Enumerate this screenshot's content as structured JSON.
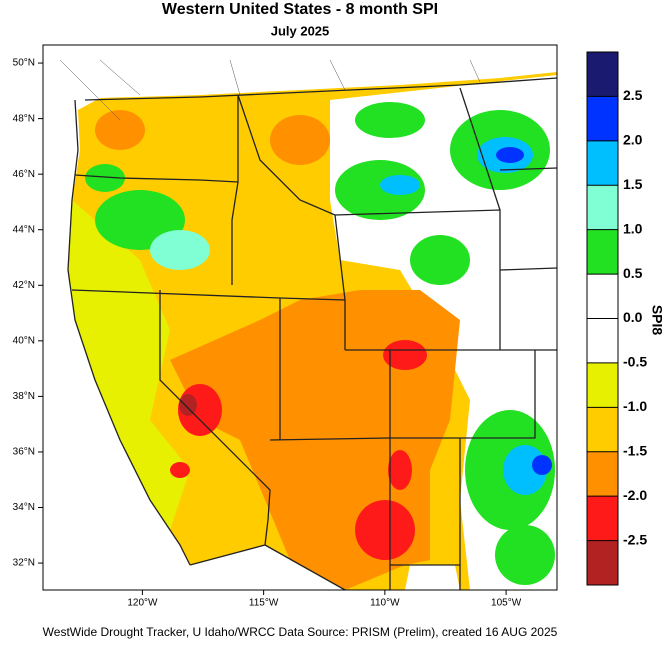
{
  "map": {
    "title": "Western United States - 8 month SPI",
    "subtitle": "July 2025",
    "xlim": [
      -124.1,
      -102.9
    ],
    "ylim": [
      31.03,
      50.65
    ],
    "lat_ticks": [
      {
        "value": 50,
        "label": "50°N"
      },
      {
        "value": 48,
        "label": "48°N"
      },
      {
        "value": 46,
        "label": "46°N"
      },
      {
        "value": 44,
        "label": "44°N"
      },
      {
        "value": 42,
        "label": "42°N"
      },
      {
        "value": 40,
        "label": "40°N"
      },
      {
        "value": 38,
        "label": "38°N"
      },
      {
        "value": 36,
        "label": "36°N"
      },
      {
        "value": 34,
        "label": "34°N"
      },
      {
        "value": 32,
        "label": "32°N"
      }
    ],
    "lon_ticks": [
      {
        "value": -120,
        "label": "120°W"
      },
      {
        "value": -115,
        "label": "115°W"
      },
      {
        "value": -110,
        "label": "110°W"
      },
      {
        "value": -105,
        "label": "105°W"
      }
    ]
  },
  "colorbar": {
    "label": "SPI8",
    "lim": [
      -3,
      3
    ],
    "ticks": [
      2.5,
      {
        "value": 2,
        "label": "2.0"
      },
      1.5,
      {
        "value": 1,
        "label": "1.0"
      },
      0.5,
      {
        "value": 0,
        "label": "0.0"
      },
      -0.5,
      {
        "value": -1,
        "label": "-1.0"
      },
      -1.5,
      {
        "value": -2,
        "label": "-2.0"
      },
      -2.5
    ],
    "colors": [
      "#b22222",
      "#ff1a1a",
      "#ff9000",
      "#ffcc00",
      "#e6f000",
      "#ffffff",
      "#ffffff",
      "#22e022",
      "#80ffd4",
      "#00bfff",
      "#0033ff",
      "#1a1a70"
    ]
  },
  "footer": "WestWide Drought Tracker, U Idaho/WRCC Data Source: PRISM (Prelim), created 16 AUG 2025"
}
